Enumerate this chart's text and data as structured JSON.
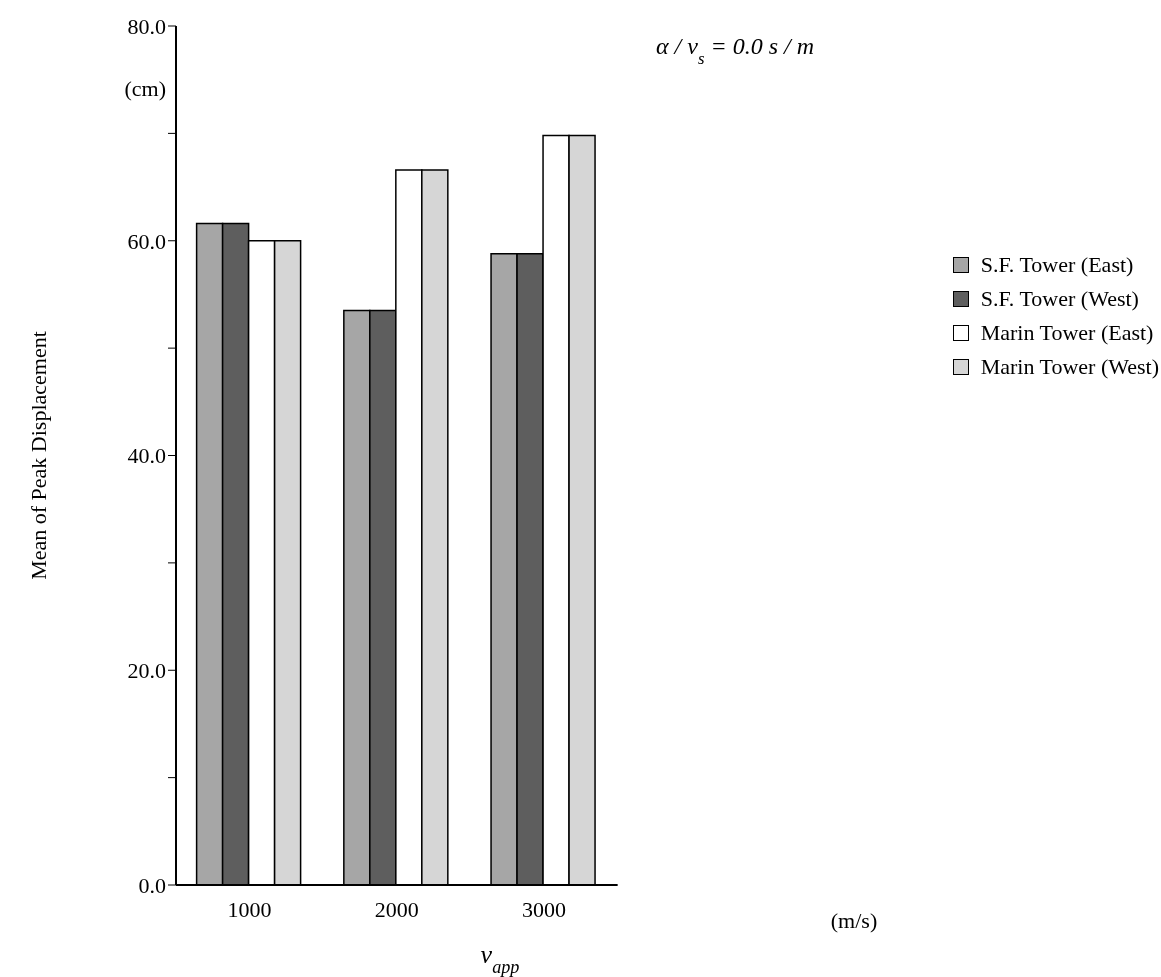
{
  "chart_data": {
    "type": "bar",
    "xlabel": "v$_{app}$",
    "ylabel": "Mean of Peak Displacement",
    "annotations": [
      "α / v$_{s}$ = 0.0 s / m",
      "(cm)",
      "(m/s)"
    ],
    "categories": [
      "1000",
      "2000",
      "3000"
    ],
    "series": [
      {
        "name": "S.F. Tower (East)",
        "color": "#a6a6a6",
        "values": [
          61.6,
          53.5,
          58.8
        ]
      },
      {
        "name": "S.F. Tower (West)",
        "color": "#5e5e5e",
        "values": [
          61.6,
          53.5,
          58.8
        ]
      },
      {
        "name": "Marin Tower (East)",
        "color": "#ffffff",
        "values": [
          60.0,
          66.6,
          69.8
        ]
      },
      {
        "name": "Marin Tower (West)",
        "color": "#d6d6d6",
        "values": [
          60.0,
          66.6,
          69.8
        ]
      }
    ],
    "ylim": [
      0,
      80
    ],
    "yticks": [
      {
        "value": 0,
        "label": "0.0"
      },
      {
        "value": 10,
        "label": null
      },
      {
        "value": 20,
        "label": "20.0"
      },
      {
        "value": 30,
        "label": null
      },
      {
        "value": 40,
        "label": "40.0"
      },
      {
        "value": 50,
        "label": null
      },
      {
        "value": 60,
        "label": "60.0"
      },
      {
        "value": 70,
        "label": null
      },
      {
        "value": 80,
        "label": "80.0"
      }
    ],
    "legend": "right"
  }
}
